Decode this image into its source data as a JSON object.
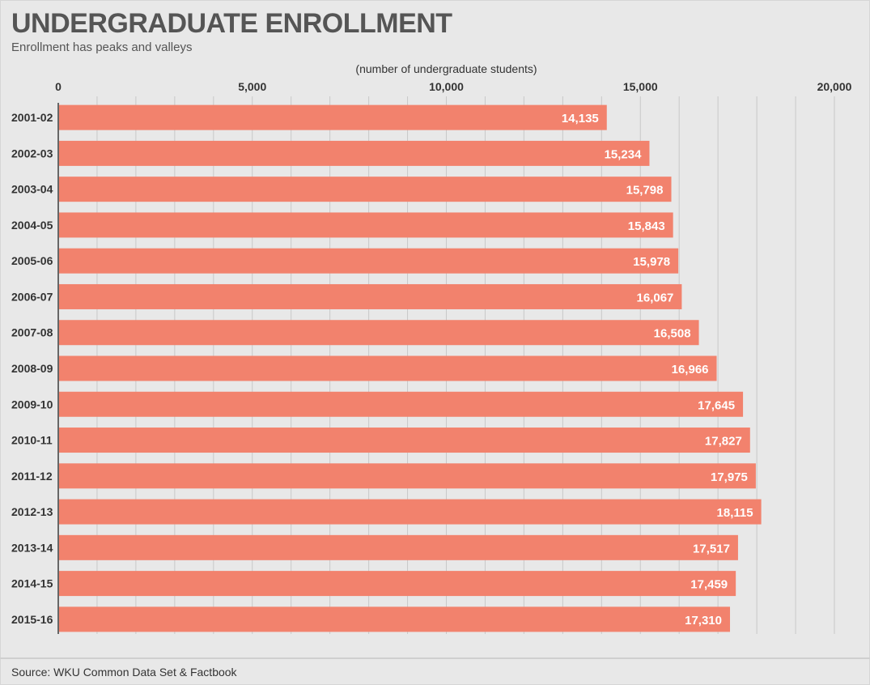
{
  "header": {
    "title": "UNDERGRADUATE ENROLLMENT",
    "subtitle": "Enrollment has peaks and valleys"
  },
  "footer": {
    "source": "Source: WKU Common Data Set & Factbook"
  },
  "colors": {
    "bar": "#f2826d",
    "grid": "#c8c8c8",
    "background": "#e8e8e8"
  },
  "chart_data": {
    "type": "bar",
    "orientation": "horizontal",
    "title": "UNDERGRADUATE ENROLLMENT",
    "subtitle": "Enrollment has peaks and valleys",
    "xlabel": "(number of undergraduate students)",
    "ylabel": "",
    "xlim": [
      0,
      20000
    ],
    "xticks": [
      0,
      5000,
      10000,
      15000,
      20000
    ],
    "xtick_labels": [
      "0",
      "5,000",
      "10,000",
      "15,000",
      "20,000"
    ],
    "x_axis_position": "top",
    "grid": true,
    "legend": "none",
    "categories": [
      "2001-02",
      "2002-03",
      "2003-04",
      "2004-05",
      "2005-06",
      "2006-07",
      "2007-08",
      "2008-09",
      "2009-10",
      "2010-11",
      "2011-12",
      "2012-13",
      "2013-14",
      "2014-15",
      "2015-16"
    ],
    "values": [
      14135,
      15234,
      15798,
      15843,
      15978,
      16067,
      16508,
      16966,
      17645,
      17827,
      17975,
      18115,
      17517,
      17459,
      17310
    ],
    "value_labels": [
      "14,135",
      "15,234",
      "15,798",
      "15,843",
      "15,978",
      "16,067",
      "16,508",
      "16,966",
      "17,645",
      "17,827",
      "17,975",
      "18,115",
      "17,517",
      "17,459",
      "17,310"
    ]
  }
}
